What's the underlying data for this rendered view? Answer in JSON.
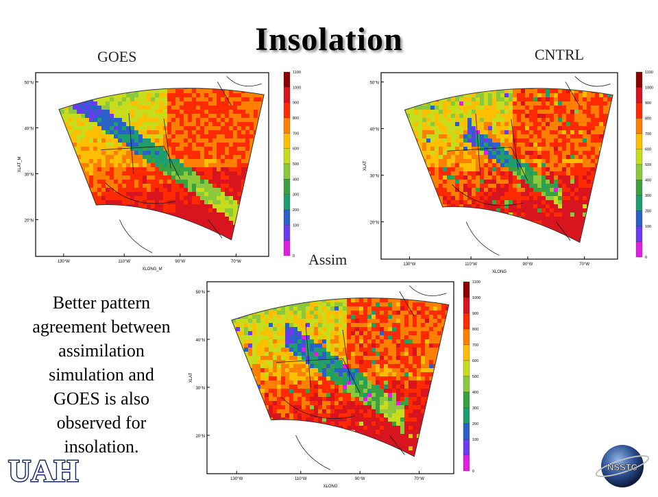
{
  "title": "Insolation",
  "panels": [
    {
      "label": "GOES",
      "ylabel": "XLAT_M",
      "xlabel": "XLONG_M",
      "lat_ticks": [
        "50°N",
        "40°N",
        "30°N",
        "20°N"
      ],
      "lon_ticks": [
        "130°W",
        "110°W",
        "90°W",
        "70°W"
      ]
    },
    {
      "label": "CNTRL",
      "ylabel": "XLAT",
      "xlabel": "XLONG",
      "lat_ticks": [
        "50°N",
        "40°N",
        "30°N",
        "20°N"
      ],
      "lon_ticks": [
        "130°W",
        "110°W",
        "90°W",
        "70°W"
      ]
    },
    {
      "label": "Assim",
      "ylabel": "XLAT",
      "xlabel": "XLONG",
      "lat_ticks": [
        "50°N",
        "40°N",
        "30°N",
        "20°N"
      ],
      "lon_ticks": [
        "130°W",
        "110°W",
        "90°W",
        "70°W"
      ]
    }
  ],
  "colorbar": {
    "ticks": [
      "1100",
      "1000",
      "900",
      "800",
      "700",
      "600",
      "500",
      "400",
      "300",
      "200",
      "100",
      "0"
    ],
    "colors": [
      "#8b0000",
      "#d8141e",
      "#ff2a00",
      "#ff7f00",
      "#ffbf00",
      "#c8dc1e",
      "#8cc83c",
      "#3ca040",
      "#1e9e6e",
      "#2b60c8",
      "#6a3cf0",
      "#e020e0"
    ]
  },
  "description": "Better pattern agreement between assimilation simulation and GOES is also observed for insolation.",
  "logos": {
    "left": "UAH",
    "right": "NSSTC"
  }
}
